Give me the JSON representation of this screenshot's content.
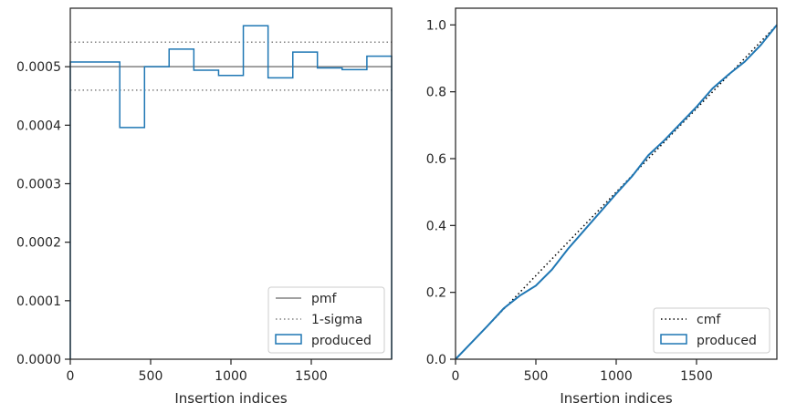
{
  "chart_data": [
    {
      "type": "histogram",
      "xlabel": "Insertion indices",
      "ylabel": "",
      "xlim": [
        0,
        2000
      ],
      "ylim": [
        0,
        0.0006
      ],
      "xticks": [
        0,
        500,
        1000,
        1500
      ],
      "xtick_labels": [
        "0",
        "500",
        "1000",
        "1500"
      ],
      "yticks": [
        0,
        0.0001,
        0.0002,
        0.0003,
        0.0004,
        0.0005
      ],
      "ytick_labels": [
        "0.0000",
        "0.0001",
        "0.0002",
        "0.0003",
        "0.0004",
        "0.0005"
      ],
      "bin_edges": [
        0,
        308,
        462,
        615,
        769,
        923,
        1077,
        1231,
        1385,
        1538,
        1692,
        1846,
        2000
      ],
      "series": [
        {
          "name": "produced",
          "style": "step",
          "color": "#1f77b4",
          "values": [
            0.000508,
            0.000396,
            0.0005,
            0.00053,
            0.000494,
            0.000485,
            0.00057,
            0.000481,
            0.000525,
            0.000498,
            0.000495,
            0.000518
          ]
        }
      ],
      "reference_lines": [
        {
          "name": "pmf",
          "y": 0.0005,
          "style": "solid",
          "color": "#808080"
        },
        {
          "name": "1-sigma",
          "y": 0.000542,
          "style": "dotted",
          "color": "#808080"
        },
        {
          "name": "1-sigma",
          "y": 0.00046,
          "style": "dotted",
          "color": "#808080"
        }
      ],
      "legend": {
        "placement": "lower-right",
        "entries": [
          "pmf",
          "1-sigma",
          "produced"
        ]
      }
    },
    {
      "type": "line",
      "xlabel": "Insertion indices",
      "ylabel": "",
      "xlim": [
        0,
        2000
      ],
      "ylim": [
        0,
        1.05
      ],
      "xticks": [
        0,
        500,
        1000,
        1500
      ],
      "xtick_labels": [
        "0",
        "500",
        "1000",
        "1500"
      ],
      "yticks": [
        0,
        0.2,
        0.4,
        0.6,
        0.8,
        1.0
      ],
      "ytick_labels": [
        "0.0",
        "0.2",
        "0.4",
        "0.6",
        "0.8",
        "1.0"
      ],
      "series": [
        {
          "name": "cmf",
          "style": "dotted",
          "color": "#000000",
          "x": [
            0,
            2000
          ],
          "y": [
            0,
            1.0
          ]
        },
        {
          "name": "produced",
          "style": "solid",
          "color": "#1f77b4",
          "x": [
            0,
            100,
            200,
            300,
            400,
            500,
            600,
            700,
            800,
            900,
            1000,
            1100,
            1200,
            1300,
            1400,
            1500,
            1600,
            1700,
            1800,
            1900,
            2000
          ],
          "y": [
            0,
            0.05,
            0.1,
            0.152,
            0.19,
            0.22,
            0.268,
            0.33,
            0.385,
            0.44,
            0.495,
            0.548,
            0.61,
            0.655,
            0.705,
            0.755,
            0.81,
            0.852,
            0.89,
            0.94,
            1.0
          ]
        }
      ],
      "legend": {
        "placement": "lower-right",
        "entries": [
          "cmf",
          "produced"
        ]
      }
    }
  ]
}
